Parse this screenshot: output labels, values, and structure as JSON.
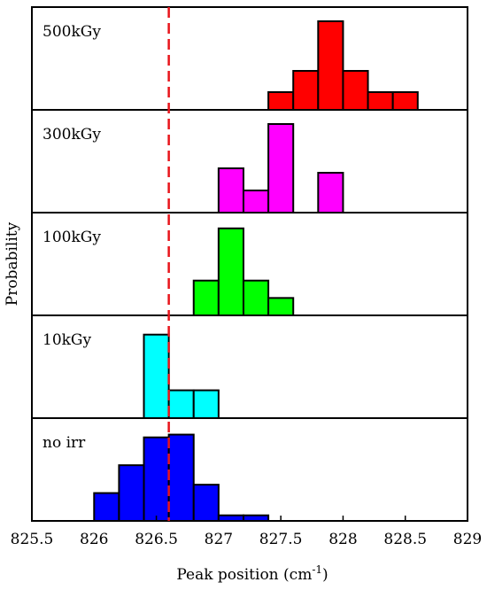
{
  "chart_data": {
    "type": "bar",
    "xlabel": "Peak position",
    "xlabel_unit_base": "(cm",
    "xlabel_unit_sup": "-1",
    "xlabel_unit_end": ")",
    "ylabel": "Probability",
    "xlim": [
      825.5,
      829
    ],
    "xticks": [
      "825.5",
      "826",
      "826.5",
      "827",
      "827.5",
      "828",
      "828.5",
      "829"
    ],
    "reference_line_x": 826.6,
    "reference_line_color": "#e8141b",
    "bin_width": 0.2,
    "panels": [
      {
        "label": "500kGy",
        "color": "#ff0000",
        "bins": [
          {
            "start": 827.4,
            "value": 1
          },
          {
            "start": 827.6,
            "value": 2.2
          },
          {
            "start": 827.8,
            "value": 5
          },
          {
            "start": 828.0,
            "value": 2.2
          },
          {
            "start": 828.2,
            "value": 1
          },
          {
            "start": 828.4,
            "value": 1
          }
        ],
        "ymax": 5.5
      },
      {
        "label": "300kGy",
        "color": "#ff00ff",
        "bins": [
          {
            "start": 827.0,
            "value": 2
          },
          {
            "start": 827.2,
            "value": 1
          },
          {
            "start": 827.4,
            "value": 4
          },
          {
            "start": 827.8,
            "value": 1.8
          }
        ],
        "ymax": 4.4
      },
      {
        "label": "100kGy",
        "color": "#00ff00",
        "bins": [
          {
            "start": 826.8,
            "value": 2
          },
          {
            "start": 827.0,
            "value": 5
          },
          {
            "start": 827.2,
            "value": 2
          },
          {
            "start": 827.4,
            "value": 1
          }
        ],
        "ymax": 5.6
      },
      {
        "label": "10kGy",
        "color": "#00ffff",
        "bins": [
          {
            "start": 826.4,
            "value": 3
          },
          {
            "start": 826.6,
            "value": 1
          },
          {
            "start": 826.8,
            "value": 1
          }
        ],
        "ymax": 3.5
      },
      {
        "label": "no irr",
        "color": "#0000ff",
        "bins": [
          {
            "start": 826.0,
            "value": 1
          },
          {
            "start": 826.2,
            "value": 2
          },
          {
            "start": 826.4,
            "value": 3
          },
          {
            "start": 826.6,
            "value": 3.1
          },
          {
            "start": 826.8,
            "value": 1.3
          },
          {
            "start": 827.0,
            "value": 0.2
          },
          {
            "start": 827.2,
            "value": 0.2
          }
        ],
        "ymax": 3.5
      }
    ]
  }
}
